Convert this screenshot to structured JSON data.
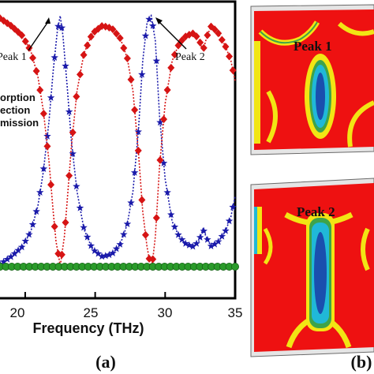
{
  "chart_data": {
    "type": "line",
    "xlabel": "Frequency (THz)",
    "x_ticks": [
      "20",
      "25",
      "30",
      "35"
    ],
    "xlim": [
      18.2,
      35
    ],
    "ylim": [
      0,
      1
    ],
    "legend": [
      "orption",
      "ection",
      "mission"
    ],
    "panel_label": "(a)",
    "annotations": [
      {
        "text": "Peak 1",
        "x": 22.5,
        "y": 1.0
      },
      {
        "text": "Peak 2",
        "x": 29.0,
        "y": 1.0
      }
    ],
    "series": [
      {
        "name": "Absorption",
        "color": "#1a1aaa",
        "marker": "star",
        "x": [
          18.2,
          19.0,
          19.8,
          20.4,
          20.9,
          21.3,
          21.7,
          22.0,
          22.3,
          22.5,
          22.7,
          23.0,
          23.3,
          23.7,
          24.2,
          24.8,
          25.5,
          26.2,
          26.8,
          27.3,
          27.7,
          28.1,
          28.4,
          28.7,
          29.0,
          29.3,
          29.6,
          30.0,
          30.5,
          31.0,
          31.5,
          32.0,
          32.4,
          32.7,
          33.0,
          33.3,
          33.8,
          34.3,
          34.7,
          35.0
        ],
        "y": [
          0.01,
          0.04,
          0.08,
          0.14,
          0.24,
          0.38,
          0.58,
          0.78,
          0.94,
          1.0,
          0.92,
          0.72,
          0.5,
          0.3,
          0.15,
          0.07,
          0.04,
          0.05,
          0.09,
          0.17,
          0.3,
          0.55,
          0.82,
          0.97,
          1.0,
          0.9,
          0.6,
          0.35,
          0.18,
          0.12,
          0.09,
          0.08,
          0.1,
          0.15,
          0.11,
          0.08,
          0.1,
          0.14,
          0.2,
          0.28
        ]
      },
      {
        "name": "Reflection",
        "color": "#d61414",
        "marker": "diamond",
        "x": [
          18.2,
          19.0,
          19.8,
          20.4,
          20.9,
          21.3,
          21.7,
          22.0,
          22.2,
          22.4,
          22.5,
          22.6,
          22.8,
          23.0,
          23.3,
          23.7,
          24.2,
          24.8,
          25.5,
          26.2,
          26.8,
          27.3,
          27.7,
          28.1,
          28.4,
          28.7,
          28.9,
          29.0,
          29.1,
          29.3,
          29.6,
          30.0,
          30.5,
          31.0,
          31.5,
          32.0,
          32.4,
          32.7,
          33.0,
          33.3,
          33.8,
          34.3,
          34.7,
          35.0
        ],
        "y": [
          0.99,
          0.96,
          0.92,
          0.86,
          0.76,
          0.62,
          0.42,
          0.22,
          0.1,
          0.04,
          0.0,
          0.04,
          0.12,
          0.26,
          0.48,
          0.7,
          0.85,
          0.93,
          0.96,
          0.95,
          0.91,
          0.83,
          0.7,
          0.45,
          0.22,
          0.08,
          0.02,
          0.0,
          0.02,
          0.12,
          0.4,
          0.65,
          0.82,
          0.89,
          0.92,
          0.93,
          0.91,
          0.86,
          0.92,
          0.96,
          0.93,
          0.88,
          0.82,
          0.74
        ]
      },
      {
        "name": "Transmission",
        "color": "#2a9a2a",
        "marker": "circle",
        "x": [
          18.2,
          35.0
        ],
        "y": [
          0.0,
          0.0
        ]
      }
    ]
  },
  "field_maps": {
    "panel_label": "(b)",
    "maps": [
      {
        "label": "Peak 1"
      },
      {
        "label": "Peak 2"
      }
    ]
  }
}
